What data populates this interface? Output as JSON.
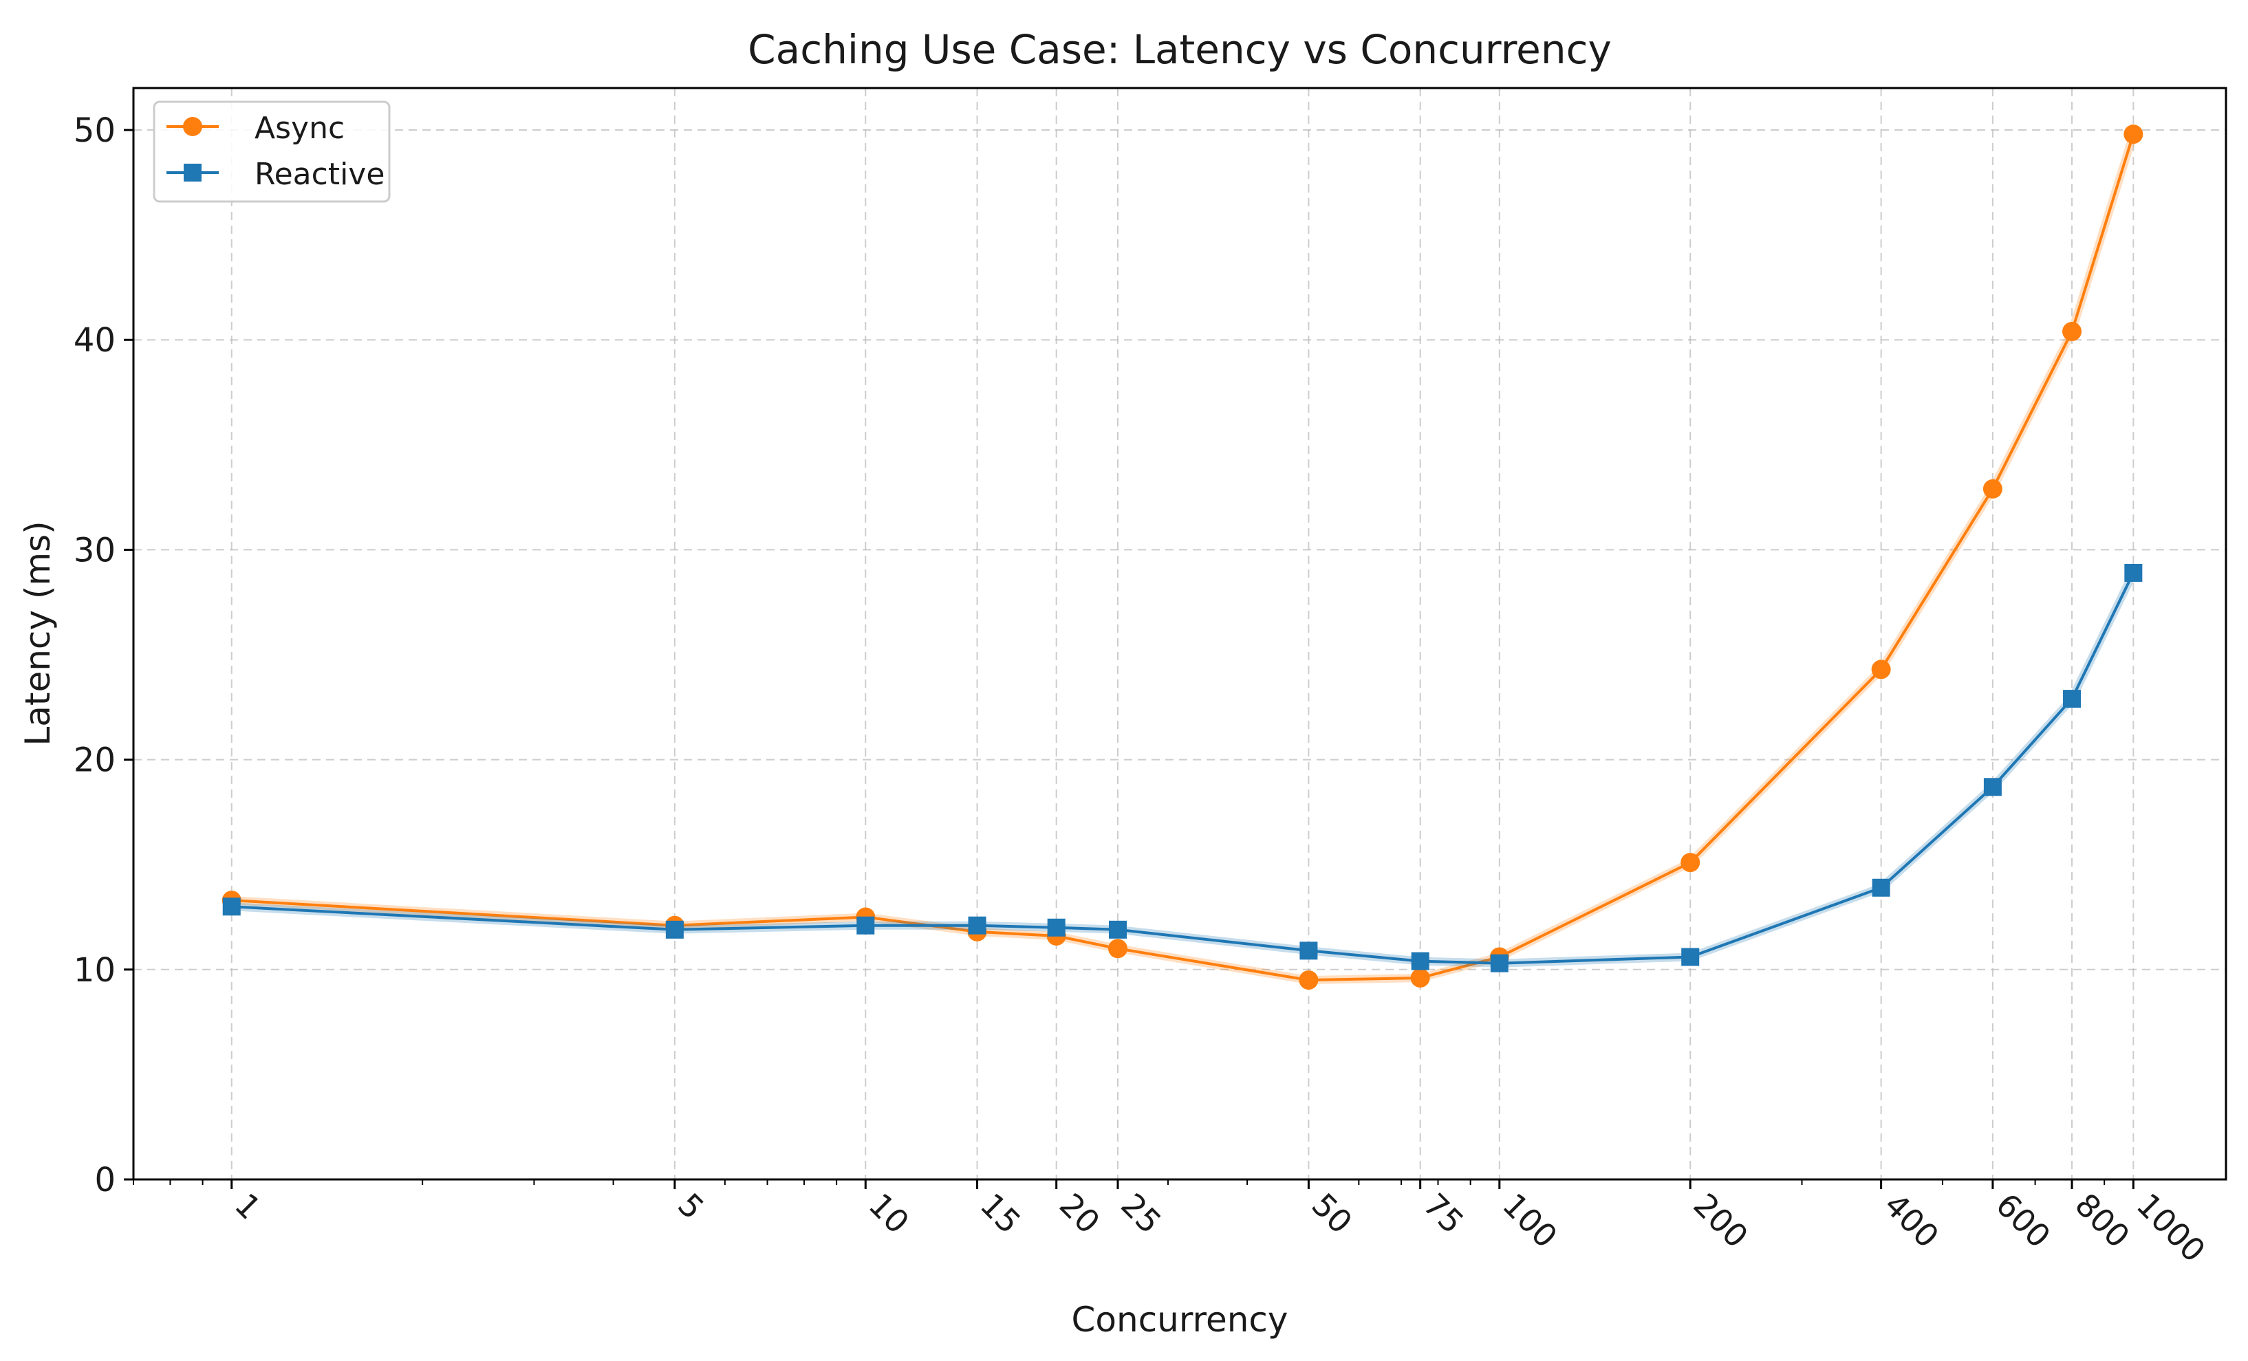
{
  "chart_data": {
    "type": "line",
    "title": "Caching Use Case: Latency vs Concurrency",
    "xlabel": "Concurrency",
    "ylabel": "Latency (ms)",
    "xscale": "log",
    "xlim": [
      0.7,
      1400
    ],
    "ylim": [
      0,
      52
    ],
    "grid": true,
    "legend_position": "top-left",
    "x": [
      1,
      5,
      10,
      15,
      20,
      25,
      50,
      75,
      100,
      200,
      400,
      600,
      800,
      1000
    ],
    "x_tick_labels": [
      "1",
      "5",
      "10",
      "15",
      "20",
      "25",
      "50",
      "75",
      "100",
      "200",
      "400",
      "600",
      "800",
      "1000"
    ],
    "y_ticks": [
      0,
      10,
      20,
      30,
      40,
      50
    ],
    "y_tick_labels": [
      "0",
      "10",
      "20",
      "30",
      "40",
      "50"
    ],
    "series": [
      {
        "name": "Async",
        "color": "#ff7f0e",
        "marker": "circle",
        "values": [
          13.3,
          12.1,
          12.5,
          11.8,
          11.6,
          11.0,
          9.5,
          9.6,
          10.6,
          15.1,
          24.3,
          32.9,
          40.4,
          49.8
        ]
      },
      {
        "name": "Reactive",
        "color": "#1f77b4",
        "marker": "square",
        "values": [
          13.0,
          11.9,
          12.1,
          12.1,
          12.0,
          11.9,
          10.9,
          10.4,
          10.3,
          10.6,
          13.9,
          18.7,
          22.9,
          28.9
        ]
      }
    ]
  }
}
